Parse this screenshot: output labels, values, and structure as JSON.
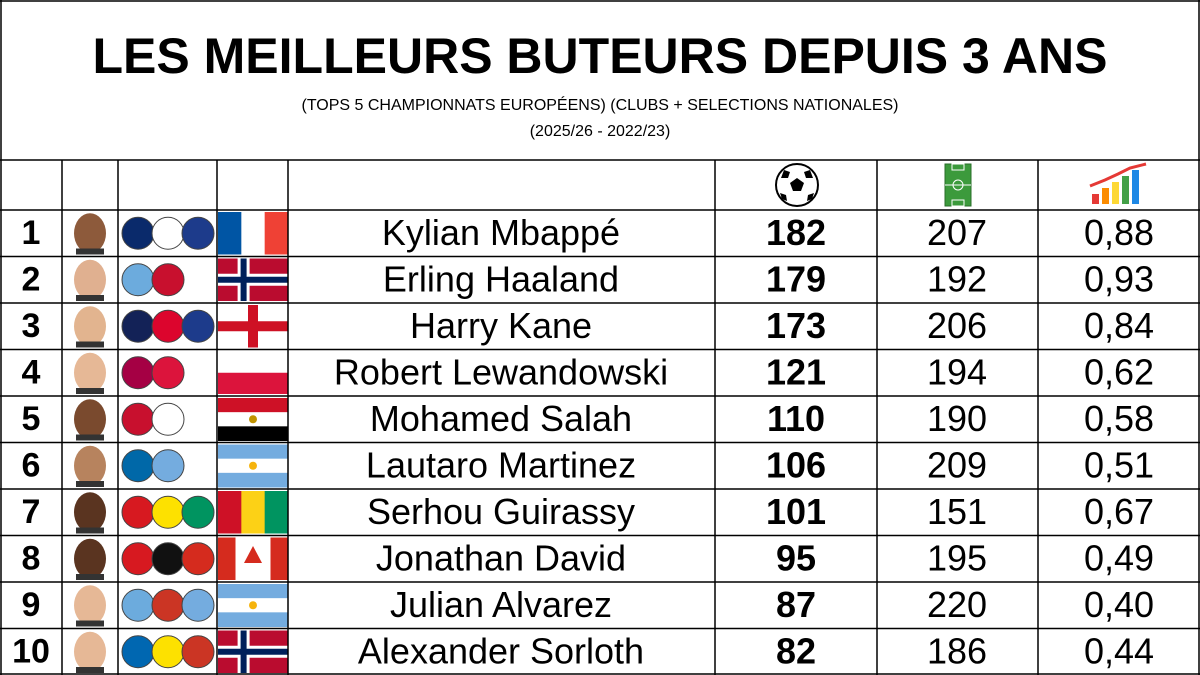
{
  "header": {
    "title": "LES MEILLEURS BUTEURS DEPUIS 3 ANS",
    "subtitle": "(TOPS 5 CHAMPIONNATS EUROPÉENS) (CLUBS + SELECTIONS NATIONALES)",
    "period": "(2025/26 - 2022/23)"
  },
  "table": {
    "rows": [
      [
        1,
        "Kylian Mbappé",
        182,
        207,
        "0,88"
      ],
      [
        2,
        "Erling Haaland",
        179,
        192,
        "0,93"
      ],
      [
        3,
        "Harry Kane",
        173,
        206,
        "0,84"
      ],
      [
        4,
        "Robert Lewandowski",
        121,
        194,
        "0,62"
      ],
      [
        5,
        "Mohamed Salah",
        110,
        190,
        "0,58"
      ],
      [
        6,
        "Lautaro Martinez",
        106,
        209,
        "0,51"
      ],
      [
        7,
        "Serhou Guirassy",
        101,
        151,
        "0,67"
      ],
      [
        8,
        "Jonathan David",
        95,
        195,
        "0,49"
      ],
      [
        9,
        "Julian Alvarez",
        87,
        220,
        "0,40"
      ],
      [
        10,
        "Alexander Sorloth",
        82,
        186,
        "0,44"
      ]
    ]
  }
}
